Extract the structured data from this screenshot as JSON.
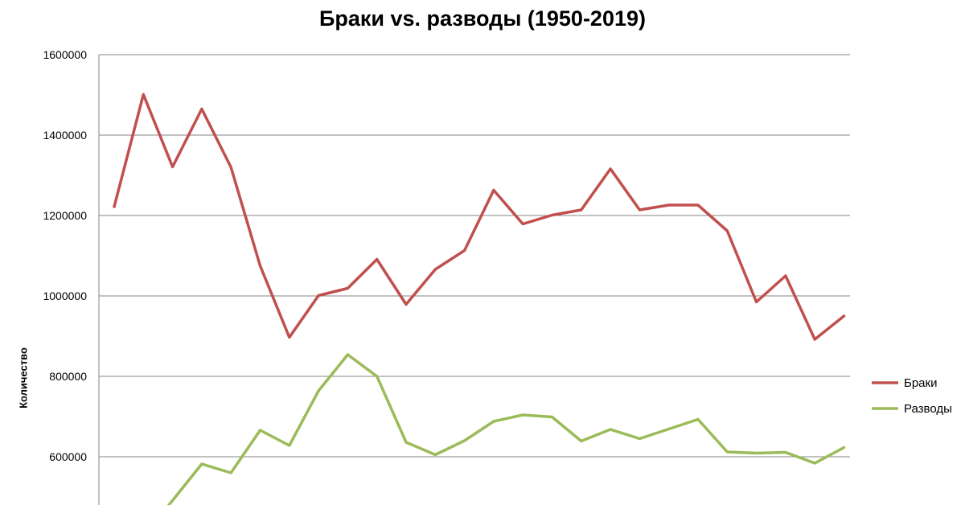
{
  "chart_data": {
    "type": "line",
    "title": "Браки vs. разводы (1950-2019)",
    "xlabel": "",
    "ylabel": "Количество",
    "ylim": [
      480000,
      1600000
    ],
    "yticks": [
      600000,
      800000,
      1000000,
      1200000,
      1400000,
      1600000
    ],
    "tick_labels": [
      "600000",
      "800000",
      "1000000",
      "1200000",
      "1400000",
      "1600000"
    ],
    "grid": true,
    "legend_position": "right",
    "series": [
      {
        "name": "Браки",
        "color": "#c0504d",
        "values": [
          1222000,
          1501000,
          1321000,
          1465000,
          1320000,
          1075000,
          897000,
          1001000,
          1019000,
          1091000,
          979000,
          1066000,
          1113000,
          1263000,
          1179000,
          1201000,
          1214000,
          1316000,
          1214000,
          1226000,
          1226000,
          1162000,
          985000,
          1050000,
          892000,
          950000
        ]
      },
      {
        "name": "Разводы",
        "color": "#9bbb59",
        "values": [
          null,
          null,
          null,
          582000,
          560000,
          666000,
          628000,
          764000,
          854000,
          800000,
          636000,
          605000,
          640000,
          688000,
          704000,
          699000,
          639000,
          668000,
          645000,
          669000,
          693000,
          612000,
          609000,
          611000,
          584000,
          623000
        ]
      }
    ],
    "divorce_lead_in": [
      [
        190,
        653
      ],
      [
        235,
        584
      ]
    ]
  }
}
